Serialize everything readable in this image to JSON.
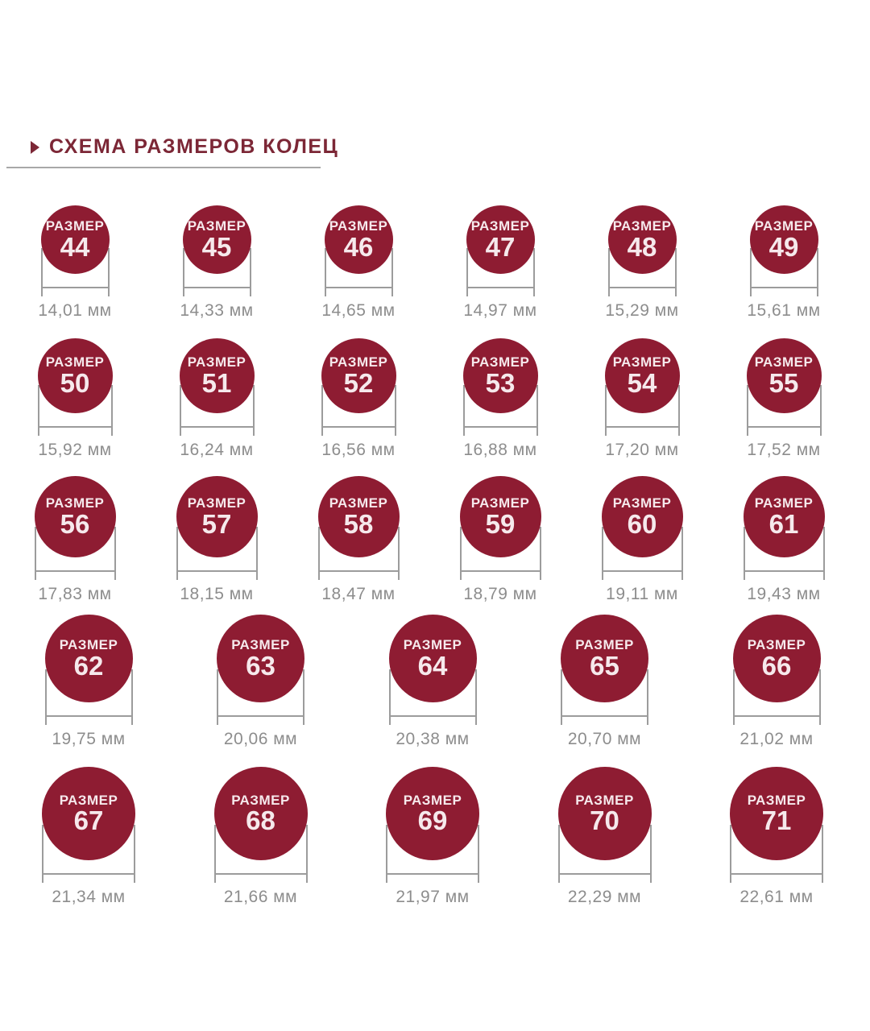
{
  "header": {
    "title": "СХЕМА РАЗМЕРОВ КОЛЕЦ"
  },
  "size_word": "РАЗМЕР",
  "colors": {
    "circle": "#8e1c32",
    "title": "#7c2736",
    "dimension_line": "#9c9c9c",
    "value_text": "#8d8d8d",
    "circle_text": "#f6e9ec"
  },
  "rows": [
    {
      "items": [
        {
          "size": "44",
          "diameter_mm": "14,01 мм"
        },
        {
          "size": "45",
          "diameter_mm": "14,33 мм"
        },
        {
          "size": "46",
          "diameter_mm": "14,65 мм"
        },
        {
          "size": "47",
          "diameter_mm": "14,97 мм"
        },
        {
          "size": "48",
          "diameter_mm": "15,29 мм"
        },
        {
          "size": "49",
          "diameter_mm": "15,61 мм"
        }
      ]
    },
    {
      "items": [
        {
          "size": "50",
          "diameter_mm": "15,92 мм"
        },
        {
          "size": "51",
          "diameter_mm": "16,24 мм"
        },
        {
          "size": "52",
          "diameter_mm": "16,56 мм"
        },
        {
          "size": "53",
          "diameter_mm": "16,88 мм"
        },
        {
          "size": "54",
          "diameter_mm": "17,20 мм"
        },
        {
          "size": "55",
          "diameter_mm": "17,52 мм"
        }
      ]
    },
    {
      "items": [
        {
          "size": "56",
          "diameter_mm": "17,83 мм"
        },
        {
          "size": "57",
          "diameter_mm": "18,15 мм"
        },
        {
          "size": "58",
          "diameter_mm": "18,47 мм"
        },
        {
          "size": "59",
          "diameter_mm": "18,79 мм"
        },
        {
          "size": "60",
          "diameter_mm": "19,11 мм"
        },
        {
          "size": "61",
          "diameter_mm": "19,43 мм"
        }
      ]
    },
    {
      "items": [
        {
          "size": "62",
          "diameter_mm": "19,75 мм"
        },
        {
          "size": "63",
          "diameter_mm": "20,06 мм"
        },
        {
          "size": "64",
          "diameter_mm": "20,38 мм"
        },
        {
          "size": "65",
          "diameter_mm": "20,70 мм"
        },
        {
          "size": "66",
          "diameter_mm": "21,02 мм"
        }
      ]
    },
    {
      "items": [
        {
          "size": "67",
          "diameter_mm": "21,34 мм"
        },
        {
          "size": "68",
          "diameter_mm": "21,66 мм"
        },
        {
          "size": "69",
          "diameter_mm": "21,97 мм"
        },
        {
          "size": "70",
          "diameter_mm": "22,29 мм"
        },
        {
          "size": "71",
          "diameter_mm": "22,61 мм"
        }
      ]
    }
  ]
}
